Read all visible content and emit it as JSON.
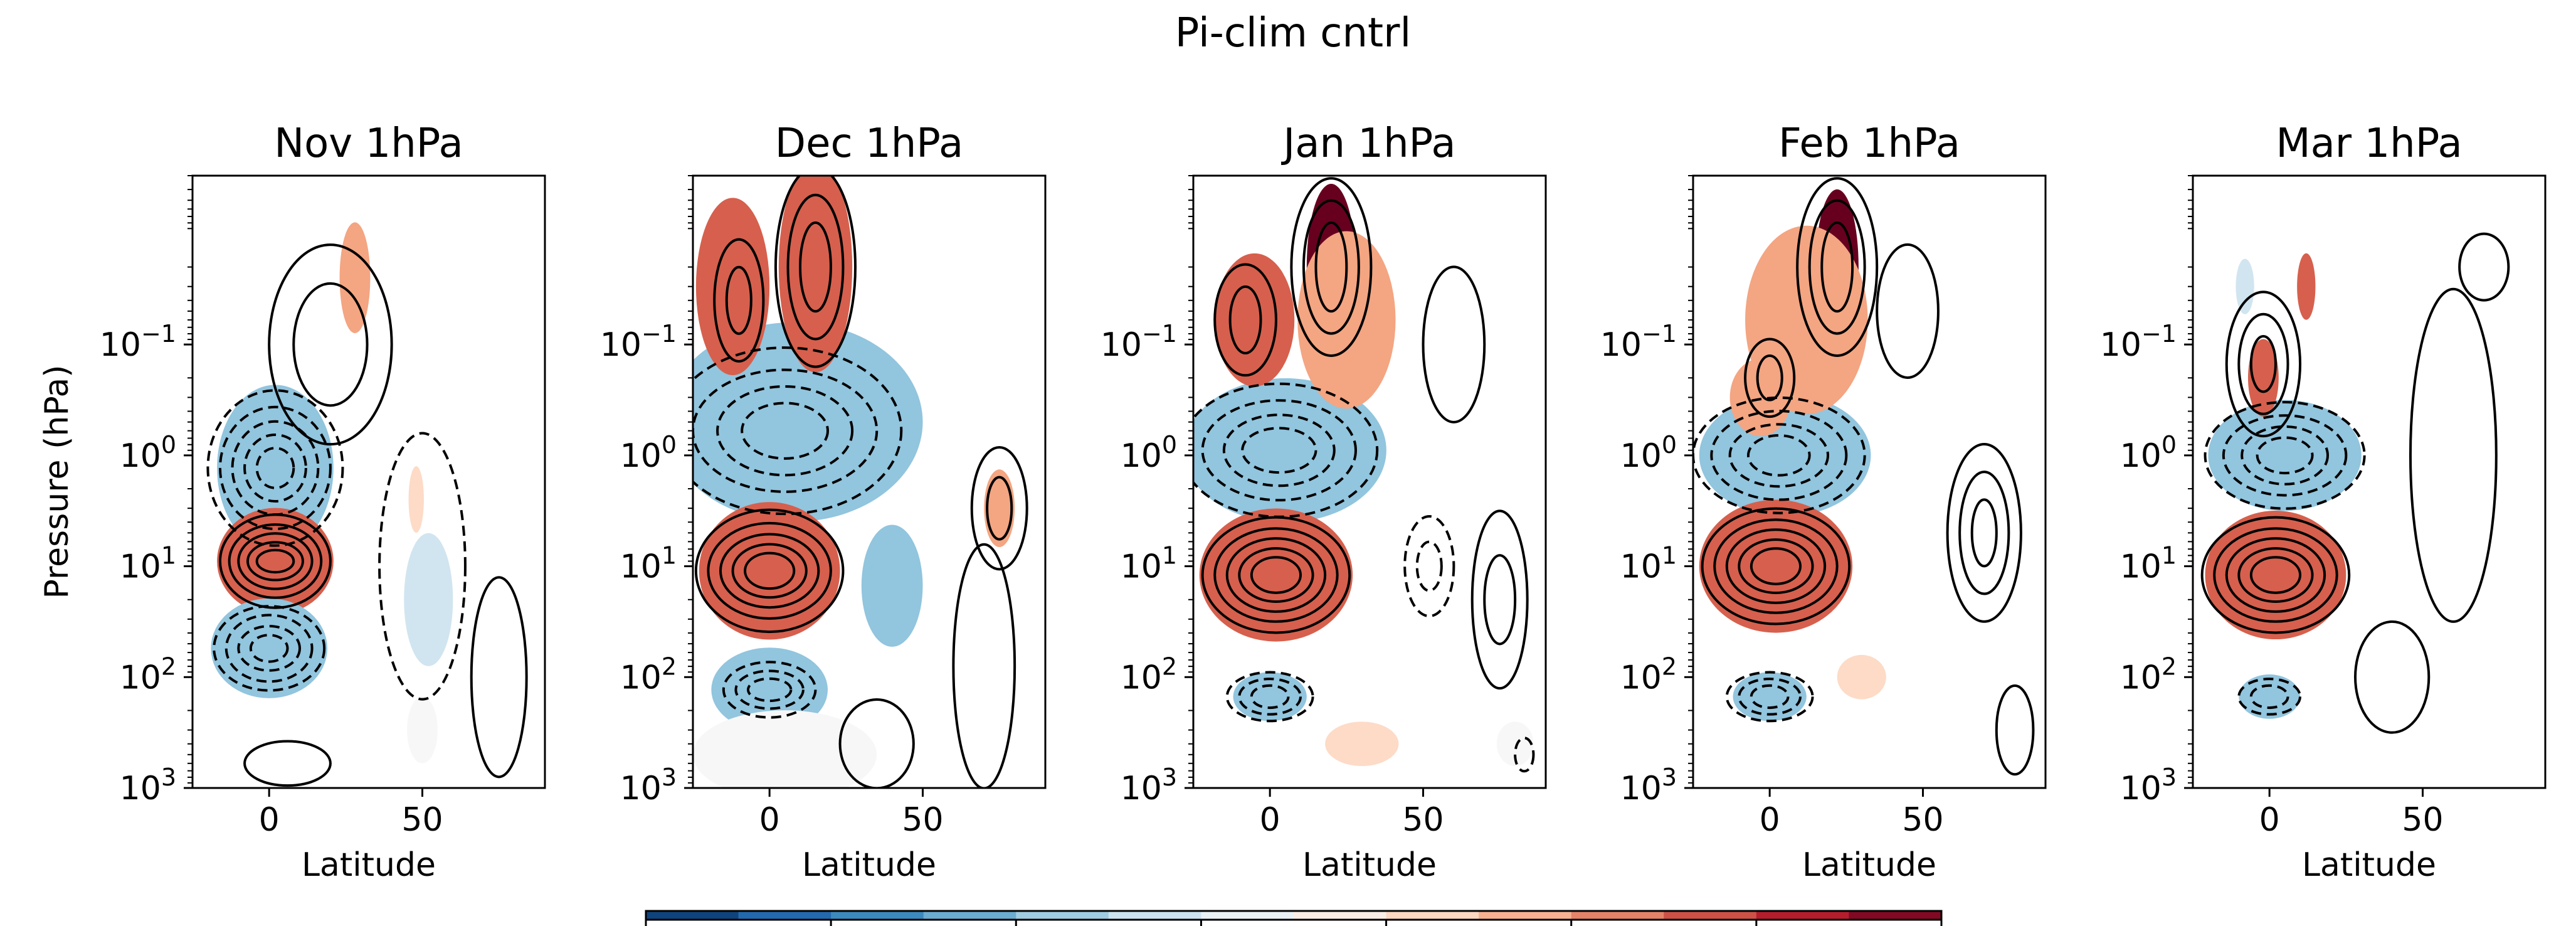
{
  "chart_data": {
    "type": "contour",
    "suptitle": "Pi-clim cntrl",
    "shared": {
      "xlabel": "Latitude",
      "ylabel": "Pressure (hPa)",
      "xlim": [
        -25,
        90
      ],
      "ylim": [
        1000,
        0.003
      ],
      "yscale": "log",
      "x_ticks": [
        0,
        50
      ],
      "y_ticks": [
        {
          "v": 0.1,
          "b": "10",
          "e": "−1"
        },
        {
          "v": 1,
          "b": "10",
          "e": "0"
        },
        {
          "v": 10,
          "b": "10",
          "e": "1"
        },
        {
          "v": 100,
          "b": "10",
          "e": "2"
        },
        {
          "v": 1000,
          "b": "10",
          "e": "3"
        }
      ],
      "colormap": "RdBu_r"
    },
    "panels": [
      {
        "title": "Nov 1hPa",
        "fills": [
          {
            "lat": 2,
            "p": 1.3,
            "rx": 13,
            "ry": 0.4,
            "v": -2
          },
          {
            "lat": 2,
            "p": 1.3,
            "rx": 19,
            "ry": 0.75,
            "v": -1
          },
          {
            "lat": 2,
            "p": 9,
            "rx": 12,
            "ry": 0.25,
            "v": 3
          },
          {
            "lat": 2,
            "p": 9,
            "rx": 19,
            "ry": 0.48,
            "v": 2
          },
          {
            "lat": 0,
            "p": 55,
            "rx": 12,
            "ry": 0.28,
            "v": -2
          },
          {
            "lat": 0,
            "p": 55,
            "rx": 19,
            "ry": 0.45,
            "v": -1
          },
          {
            "lat": 28,
            "p": 0.025,
            "rx": 5,
            "ry": 0.5,
            "v": 1
          },
          {
            "lat": 48,
            "p": 2.5,
            "rx": 2.5,
            "ry": 0.3,
            "v": 0.6
          },
          {
            "lat": 52,
            "p": 20,
            "rx": 8,
            "ry": 0.6,
            "v": -0.4
          },
          {
            "lat": 50,
            "p": 300,
            "rx": 5,
            "ry": 0.3,
            "v": -0.3
          }
        ],
        "contours": [
          {
            "lat": 2,
            "p": 9,
            "rx": [
              6,
              9,
              12,
              15,
              18
            ],
            "ry": [
              0.1,
              0.17,
              0.25,
              0.33,
              0.42
            ],
            "s": 1
          },
          {
            "lat": 2,
            "p": 1.3,
            "rx": [
              6,
              10,
              14,
              18,
              22
            ],
            "ry": [
              0.18,
              0.3,
              0.42,
              0.55,
              0.7
            ],
            "s": -1
          },
          {
            "lat": 0,
            "p": 55,
            "rx": [
              6,
              10,
              14,
              18
            ],
            "ry": [
              0.12,
              0.2,
              0.3,
              0.38
            ],
            "s": -1
          },
          {
            "lat": 50,
            "p": 10,
            "rx": [
              14
            ],
            "ry": [
              1.2
            ],
            "s": -1
          },
          {
            "lat": 20,
            "p": 0.1,
            "rx": [
              12,
              20
            ],
            "ry": [
              0.55,
              0.9
            ],
            "s": 1
          },
          {
            "lat": 75,
            "p": 100,
            "rx": [
              9
            ],
            "ry": [
              0.9
            ],
            "s": 1
          },
          {
            "lat": 6,
            "p": 600,
            "rx": [
              14
            ],
            "ry": [
              0.2
            ],
            "s": 1
          }
        ]
      },
      {
        "title": "Dec 1hPa",
        "fills": [
          {
            "lat": 5,
            "p": 0.6,
            "rx": 32,
            "ry": 0.55,
            "v": -2
          },
          {
            "lat": 8,
            "p": 0.5,
            "rx": 42,
            "ry": 0.9,
            "v": -1
          },
          {
            "lat": 0,
            "p": 11,
            "rx": 16,
            "ry": 0.38,
            "v": 3
          },
          {
            "lat": 0,
            "p": 11,
            "rx": 23,
            "ry": 0.62,
            "v": 2
          },
          {
            "lat": 15,
            "p": 0.02,
            "rx": 8,
            "ry": 0.7,
            "v": 3
          },
          {
            "lat": 15,
            "p": 0.02,
            "rx": 12,
            "ry": 0.95,
            "v": 2
          },
          {
            "lat": -12,
            "p": 0.03,
            "rx": 6,
            "ry": 0.4,
            "v": 3
          },
          {
            "lat": -12,
            "p": 0.03,
            "rx": 12,
            "ry": 0.8,
            "v": 1.5
          },
          {
            "lat": 0,
            "p": 130,
            "rx": 13,
            "ry": 0.25,
            "v": -2
          },
          {
            "lat": 0,
            "p": 130,
            "rx": 19,
            "ry": 0.38,
            "v": -1
          },
          {
            "lat": 75,
            "p": 3,
            "rx": 5,
            "ry": 0.35,
            "v": 1
          },
          {
            "lat": 40,
            "p": 15,
            "rx": 10,
            "ry": 0.55,
            "v": -1
          },
          {
            "lat": 5,
            "p": 500,
            "rx": 30,
            "ry": 0.4,
            "v": -0.3
          }
        ],
        "contours": [
          {
            "lat": 0,
            "p": 11,
            "rx": [
              8,
              12,
              16,
              20,
              24
            ],
            "ry": [
              0.16,
              0.24,
              0.33,
              0.43,
              0.55
            ],
            "s": 1
          },
          {
            "lat": 5,
            "p": 0.6,
            "rx": [
              14,
              22,
              30,
              38
            ],
            "ry": [
              0.25,
              0.4,
              0.55,
              0.75
            ],
            "s": -1
          },
          {
            "lat": 0,
            "p": 130,
            "rx": [
              7,
              11,
              15
            ],
            "ry": [
              0.1,
              0.17,
              0.25
            ],
            "s": -1
          },
          {
            "lat": 15,
            "p": 0.02,
            "rx": [
              5,
              9,
              13
            ],
            "ry": [
              0.4,
              0.65,
              0.9
            ],
            "s": 1
          },
          {
            "lat": -10,
            "p": 0.04,
            "rx": [
              4,
              8
            ],
            "ry": [
              0.3,
              0.55
            ],
            "s": 1
          },
          {
            "lat": 75,
            "p": 3,
            "rx": [
              4,
              9
            ],
            "ry": [
              0.28,
              0.55
            ],
            "s": 1
          },
          {
            "lat": 70,
            "p": 80,
            "rx": [
              10
            ],
            "ry": [
              1.1
            ],
            "s": 1
          },
          {
            "lat": 35,
            "p": 400,
            "rx": [
              12
            ],
            "ry": [
              0.4
            ],
            "s": 1
          }
        ]
      },
      {
        "title": "Jan 1hPa",
        "fills": [
          {
            "lat": 2,
            "p": 0.8,
            "rx": 24,
            "ry": 0.35,
            "v": -2
          },
          {
            "lat": 5,
            "p": 0.9,
            "rx": 33,
            "ry": 0.65,
            "v": -1
          },
          {
            "lat": 2,
            "p": 12,
            "rx": 17,
            "ry": 0.37,
            "v": 3
          },
          {
            "lat": 2,
            "p": 12,
            "rx": 25,
            "ry": 0.6,
            "v": 2
          },
          {
            "lat": 20,
            "p": 0.02,
            "rx": 8,
            "ry": 0.75,
            "v": 3
          },
          {
            "lat": -5,
            "p": 0.06,
            "rx": 13,
            "ry": 0.6,
            "v": 1.8
          },
          {
            "lat": 25,
            "p": 0.06,
            "rx": 16,
            "ry": 0.8,
            "v": 1
          },
          {
            "lat": 0,
            "p": 150,
            "rx": 12,
            "ry": 0.22,
            "v": -1.5
          },
          {
            "lat": 30,
            "p": 400,
            "rx": 12,
            "ry": 0.2,
            "v": 0.4
          },
          {
            "lat": 80,
            "p": 400,
            "rx": 6,
            "ry": 0.2,
            "v": -0.3
          }
        ],
        "contours": [
          {
            "lat": 2,
            "p": 12,
            "rx": [
              8,
              12,
              16,
              20,
              24
            ],
            "ry": [
              0.16,
              0.24,
              0.33,
              0.42,
              0.52
            ],
            "s": 1
          },
          {
            "lat": 3,
            "p": 0.9,
            "rx": [
              12,
              18,
              25,
              32
            ],
            "ry": [
              0.2,
              0.32,
              0.45,
              0.6
            ],
            "s": -1
          },
          {
            "lat": 0,
            "p": 150,
            "rx": [
              6,
              10,
              14
            ],
            "ry": [
              0.1,
              0.16,
              0.22
            ],
            "s": -1
          },
          {
            "lat": 20,
            "p": 0.02,
            "rx": [
              5,
              9,
              13
            ],
            "ry": [
              0.4,
              0.6,
              0.8
            ],
            "s": 1
          },
          {
            "lat": -8,
            "p": 0.06,
            "rx": [
              5,
              10
            ],
            "ry": [
              0.3,
              0.5
            ],
            "s": 1
          },
          {
            "lat": 52,
            "p": 10,
            "rx": [
              4,
              8
            ],
            "ry": [
              0.22,
              0.45
            ],
            "s": -1
          },
          {
            "lat": 75,
            "p": 20,
            "rx": [
              5,
              9
            ],
            "ry": [
              0.4,
              0.8
            ],
            "s": 1
          },
          {
            "lat": 83,
            "p": 500,
            "rx": [
              3
            ],
            "ry": [
              0.15
            ],
            "s": -1
          },
          {
            "lat": 60,
            "p": 0.1,
            "rx": [
              10
            ],
            "ry": [
              0.7
            ],
            "s": 1
          }
        ]
      },
      {
        "title": "Feb 1hPa",
        "fills": [
          {
            "lat": 2,
            "p": 1,
            "rx": 20,
            "ry": 0.3,
            "v": -2
          },
          {
            "lat": 5,
            "p": 1,
            "rx": 28,
            "ry": 0.55,
            "v": -1
          },
          {
            "lat": 2,
            "p": 10,
            "rx": 17,
            "ry": 0.37,
            "v": 3
          },
          {
            "lat": 2,
            "p": 10,
            "rx": 25,
            "ry": 0.6,
            "v": 2
          },
          {
            "lat": 22,
            "p": 0.02,
            "rx": 7,
            "ry": 0.7,
            "v": 3
          },
          {
            "lat": 12,
            "p": 0.06,
            "rx": 20,
            "ry": 0.85,
            "v": 1
          },
          {
            "lat": -3,
            "p": 0.3,
            "rx": 10,
            "ry": 0.35,
            "v": 1
          },
          {
            "lat": 0,
            "p": 150,
            "rx": 12,
            "ry": 0.22,
            "v": -1.5
          },
          {
            "lat": 30,
            "p": 100,
            "rx": 8,
            "ry": 0.2,
            "v": 0.5
          }
        ],
        "contours": [
          {
            "lat": 2,
            "p": 10,
            "rx": [
              8,
              12,
              16,
              20,
              24
            ],
            "ry": [
              0.16,
              0.24,
              0.33,
              0.42,
              0.52
            ],
            "s": 1
          },
          {
            "lat": 3,
            "p": 1,
            "rx": [
              10,
              16,
              22,
              28
            ],
            "ry": [
              0.18,
              0.28,
              0.4,
              0.52
            ],
            "s": -1
          },
          {
            "lat": 0,
            "p": 150,
            "rx": [
              6,
              10,
              14
            ],
            "ry": [
              0.1,
              0.16,
              0.22
            ],
            "s": -1
          },
          {
            "lat": 22,
            "p": 0.02,
            "rx": [
              5,
              9,
              13
            ],
            "ry": [
              0.4,
              0.6,
              0.8
            ],
            "s": 1
          },
          {
            "lat": 0,
            "p": 0.2,
            "rx": [
              4,
              8
            ],
            "ry": [
              0.2,
              0.35
            ],
            "s": 1
          },
          {
            "lat": 70,
            "p": 5,
            "rx": [
              4,
              8,
              12
            ],
            "ry": [
              0.3,
              0.55,
              0.8
            ],
            "s": 1
          },
          {
            "lat": 45,
            "p": 0.05,
            "rx": [
              10
            ],
            "ry": [
              0.6
            ],
            "s": 1
          },
          {
            "lat": 80,
            "p": 300,
            "rx": [
              6
            ],
            "ry": [
              0.4
            ],
            "s": 1
          }
        ]
      },
      {
        "title": "Mar 1hPa",
        "fills": [
          {
            "lat": 5,
            "p": 1,
            "rx": 18,
            "ry": 0.28,
            "v": -2
          },
          {
            "lat": 5,
            "p": 1,
            "rx": 25,
            "ry": 0.5,
            "v": -1
          },
          {
            "lat": 2,
            "p": 12,
            "rx": 16,
            "ry": 0.36,
            "v": 3
          },
          {
            "lat": 2,
            "p": 12,
            "rx": 23,
            "ry": 0.58,
            "v": 2
          },
          {
            "lat": -2,
            "p": 0.2,
            "rx": 5,
            "ry": 0.35,
            "v": 1.5
          },
          {
            "lat": 12,
            "p": 0.03,
            "rx": 3,
            "ry": 0.3,
            "v": 1.5
          },
          {
            "lat": -8,
            "p": 0.03,
            "rx": 3,
            "ry": 0.25,
            "v": -0.8
          },
          {
            "lat": 0,
            "p": 150,
            "rx": 10,
            "ry": 0.2,
            "v": -1.2
          }
        ],
        "contours": [
          {
            "lat": 2,
            "p": 12,
            "rx": [
              8,
              12,
              16,
              20,
              24
            ],
            "ry": [
              0.16,
              0.24,
              0.33,
              0.42,
              0.52
            ],
            "s": 1
          },
          {
            "lat": 5,
            "p": 1,
            "rx": [
              9,
              14,
              20,
              26
            ],
            "ry": [
              0.16,
              0.26,
              0.36,
              0.48
            ],
            "s": -1
          },
          {
            "lat": 0,
            "p": 150,
            "rx": [
              6,
              10
            ],
            "ry": [
              0.1,
              0.16
            ],
            "s": -1
          },
          {
            "lat": -2,
            "p": 0.15,
            "rx": [
              4,
              8,
              12
            ],
            "ry": [
              0.25,
              0.45,
              0.65
            ],
            "s": 1
          },
          {
            "lat": 60,
            "p": 1,
            "rx": [
              14
            ],
            "ry": [
              1.5
            ],
            "s": 1
          },
          {
            "lat": 40,
            "p": 100,
            "rx": [
              12
            ],
            "ry": [
              0.5
            ],
            "s": 1
          },
          {
            "lat": 70,
            "p": 0.02,
            "rx": [
              8
            ],
            "ry": [
              0.3
            ],
            "s": 1
          }
        ]
      }
    ],
    "colorbar": {
      "orientation": "horizontal",
      "levels": 14,
      "ticks": 8,
      "tick_labels": [],
      "colors": [
        "#053061",
        "#2166ac",
        "#4393c3",
        "#92c5de",
        "#d1e5f0",
        "#f7f7f7",
        "#fddbc7",
        "#f4a582",
        "#d6604d",
        "#b2182b",
        "#67001f"
      ]
    }
  }
}
